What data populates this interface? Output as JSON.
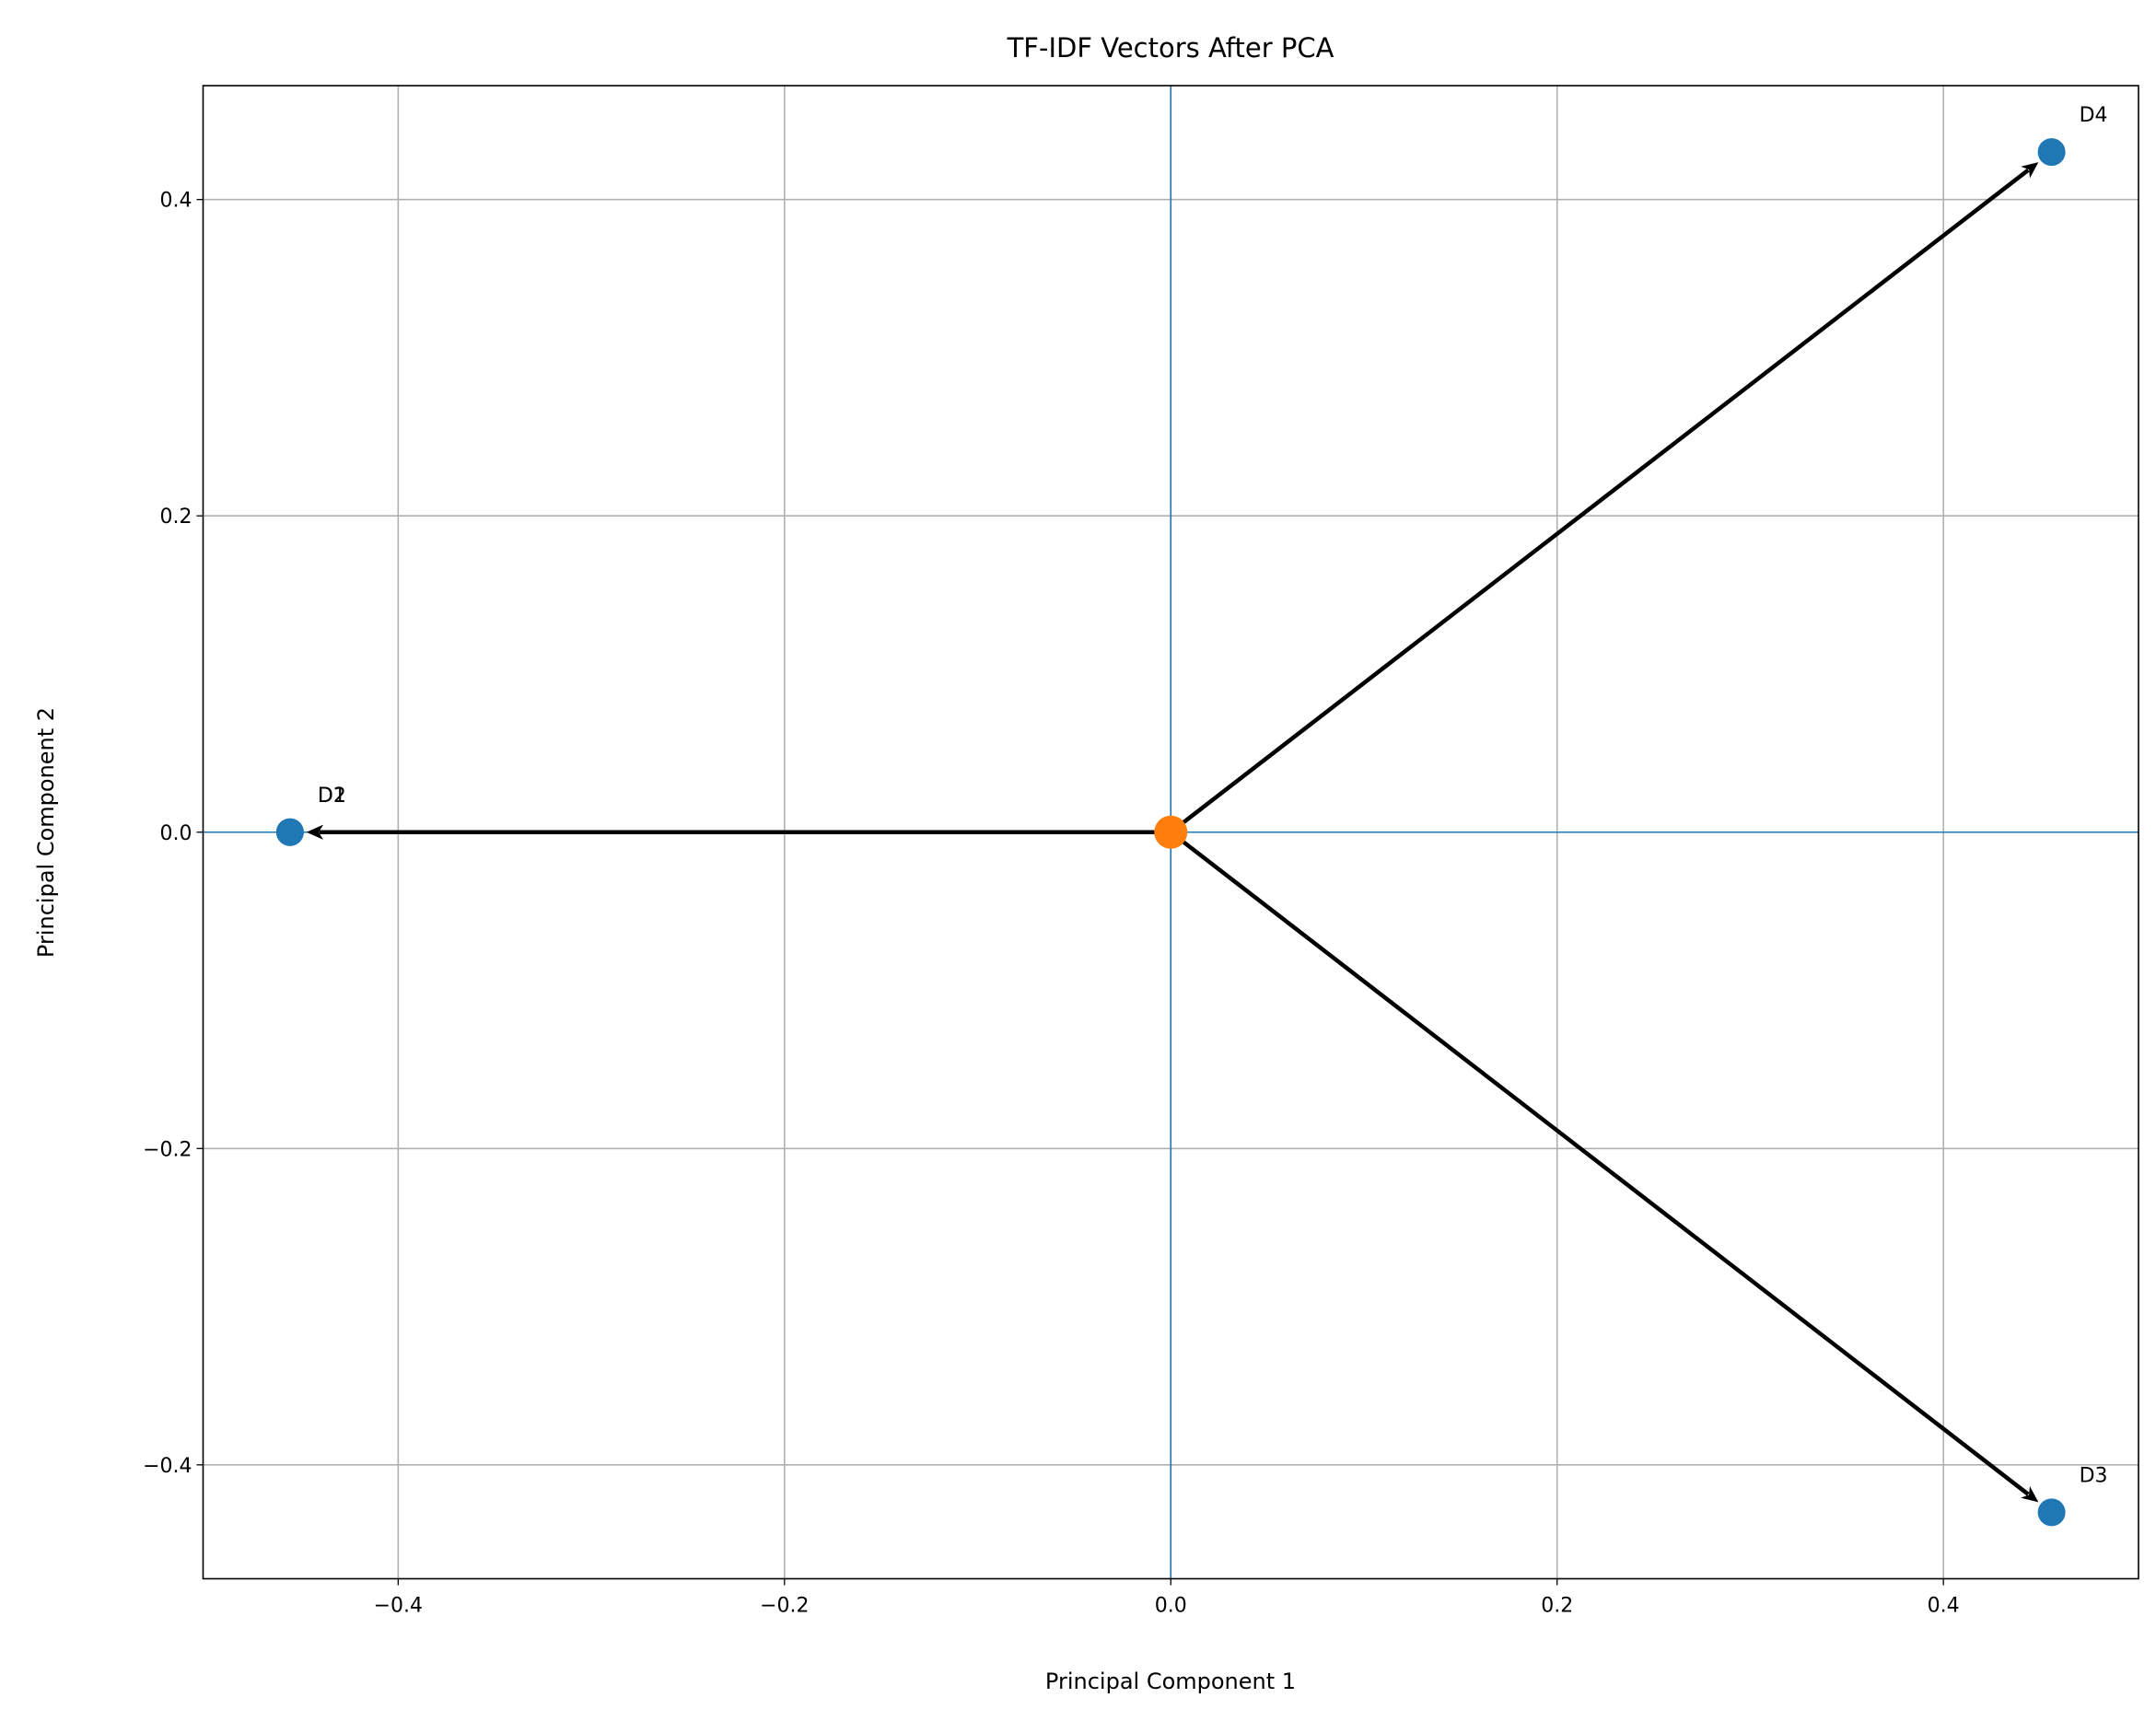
{
  "chart_data": {
    "type": "scatter",
    "title": "TF-IDF Vectors After PCA",
    "xlabel": "Principal Component 1",
    "ylabel": "Principal Component 2",
    "points": {
      "labels": [
        "D1",
        "D2",
        "D3",
        "D4"
      ],
      "x": [
        -0.456,
        -0.456,
        0.456,
        0.456
      ],
      "y": [
        0,
        0,
        -0.43,
        0.43
      ],
      "color": "#1f77b4"
    },
    "origin": {
      "x": 0,
      "y": 0,
      "color": "#ff7f0e"
    },
    "arrow_color": "#000000",
    "axis_line_color": "#1f77b4",
    "xlim": [
      -0.501,
      0.501
    ],
    "ylim": [
      -0.472,
      0.472
    ],
    "xticks": [
      {
        "value": -0.4,
        "label": "−0.4"
      },
      {
        "value": -0.2,
        "label": "−0.2"
      },
      {
        "value": 0,
        "label": "0.0"
      },
      0.2,
      0.4
    ],
    "yticks": [
      {
        "value": -0.4,
        "label": "−0.4"
      },
      {
        "value": -0.2,
        "label": "−0.2"
      },
      {
        "value": 0,
        "label": "0.0"
      },
      0.2,
      0.4
    ],
    "grid": true
  }
}
